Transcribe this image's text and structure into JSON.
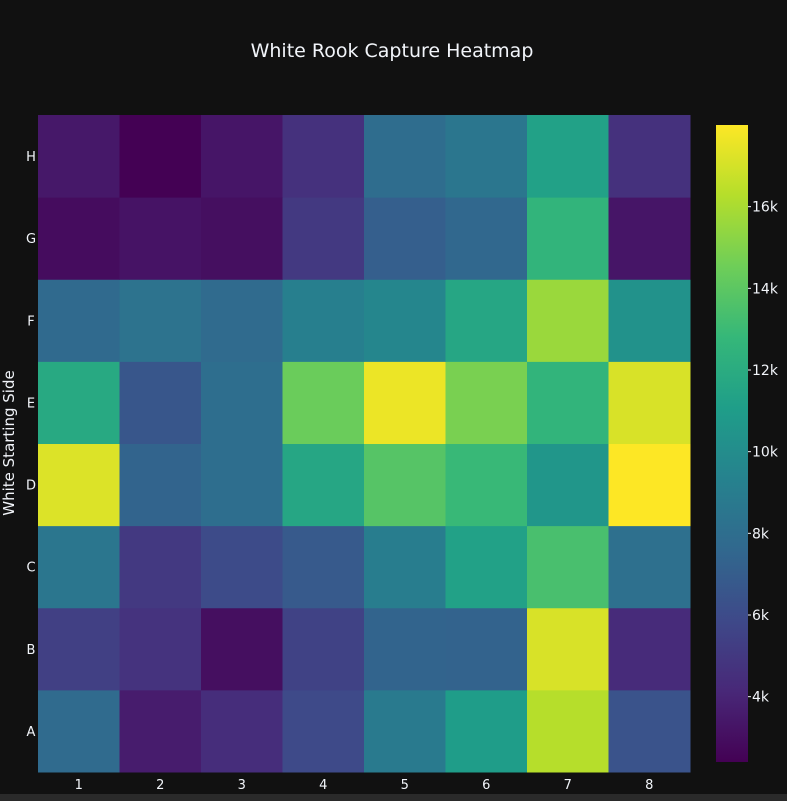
{
  "chart_data": {
    "type": "heatmap",
    "title": "White Rook Capture Heatmap",
    "xlabel": "",
    "ylabel": "White Starting Side",
    "x": [
      "1",
      "2",
      "3",
      "4",
      "5",
      "6",
      "7",
      "8"
    ],
    "y": [
      "A",
      "B",
      "C",
      "D",
      "E",
      "F",
      "G",
      "H"
    ],
    "z": [
      [
        7800,
        3600,
        4400,
        5900,
        8800,
        11000,
        16300,
        6400
      ],
      [
        5400,
        4700,
        3000,
        5500,
        7400,
        7300,
        17100,
        4300
      ],
      [
        8500,
        5000,
        6000,
        6800,
        9000,
        11300,
        13400,
        8100
      ],
      [
        17200,
        7400,
        8000,
        11600,
        13800,
        12900,
        10600,
        18000
      ],
      [
        11800,
        6600,
        8000,
        14400,
        17600,
        14800,
        12600,
        17100
      ],
      [
        7700,
        8300,
        7800,
        9100,
        9600,
        11600,
        15600,
        10300
      ],
      [
        2900,
        3200,
        3000,
        5000,
        7100,
        7600,
        12600,
        3300
      ],
      [
        3400,
        2400,
        3300,
        4600,
        7900,
        8500,
        11300,
        4600
      ]
    ],
    "colorscale": "viridis",
    "zmin": 2400,
    "zmax": 18000,
    "colorbar_ticks": [
      {
        "value": 4000,
        "label": "4k"
      },
      {
        "value": 6000,
        "label": "6k"
      },
      {
        "value": 8000,
        "label": "8k"
      },
      {
        "value": 10000,
        "label": "10k"
      },
      {
        "value": 12000,
        "label": "12k"
      },
      {
        "value": 14000,
        "label": "14k"
      },
      {
        "value": 16000,
        "label": "16k"
      }
    ],
    "legend": "colorbar-right",
    "grid": false
  },
  "colors": {
    "background": "#111111",
    "text": "#f2f5fa"
  }
}
